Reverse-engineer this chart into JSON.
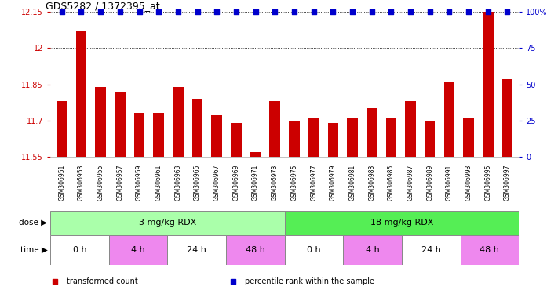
{
  "title": "GDS5282 / 1372395_at",
  "bar_values": [
    11.78,
    12.07,
    11.84,
    11.82,
    11.73,
    11.73,
    11.84,
    11.79,
    11.72,
    11.69,
    11.57,
    11.78,
    11.7,
    11.71,
    11.69,
    11.71,
    11.75,
    11.71,
    11.78,
    11.7,
    11.86,
    11.71,
    12.15,
    11.87
  ],
  "percentile_values": [
    100,
    100,
    100,
    100,
    100,
    100,
    100,
    100,
    100,
    100,
    100,
    100,
    100,
    100,
    100,
    100,
    100,
    100,
    100,
    100,
    100,
    100,
    100,
    100
  ],
  "xlabels": [
    "GSM306951",
    "GSM306953",
    "GSM306955",
    "GSM306957",
    "GSM306959",
    "GSM306961",
    "GSM306963",
    "GSM306965",
    "GSM306967",
    "GSM306969",
    "GSM306971",
    "GSM306973",
    "GSM306975",
    "GSM306977",
    "GSM306979",
    "GSM306981",
    "GSM306983",
    "GSM306985",
    "GSM306987",
    "GSM306989",
    "GSM306991",
    "GSM306993",
    "GSM306995",
    "GSM306997"
  ],
  "bar_color": "#cc0000",
  "percentile_color": "#0000cc",
  "ylim_left": [
    11.55,
    12.15
  ],
  "ylim_right": [
    0,
    100
  ],
  "yticks_left": [
    11.55,
    11.7,
    11.85,
    12.0,
    12.15
  ],
  "ytick_labels_left": [
    "11.55",
    "11.7",
    "11.85",
    "12",
    "12.15"
  ],
  "yticks_right": [
    0,
    25,
    50,
    75,
    100
  ],
  "ytick_labels_right": [
    "0",
    "25",
    "50",
    "75",
    "100%"
  ],
  "dose_groups": [
    {
      "label": "3 mg/kg RDX",
      "start": 0,
      "end": 12,
      "color": "#aaffaa"
    },
    {
      "label": "18 mg/kg RDX",
      "start": 12,
      "end": 24,
      "color": "#55ee55"
    }
  ],
  "time_groups": [
    {
      "label": "0 h",
      "start": 0,
      "end": 3,
      "color": "#ffffff"
    },
    {
      "label": "4 h",
      "start": 3,
      "end": 6,
      "color": "#ee88ee"
    },
    {
      "label": "24 h",
      "start": 6,
      "end": 9,
      "color": "#ffffff"
    },
    {
      "label": "48 h",
      "start": 9,
      "end": 12,
      "color": "#ee88ee"
    },
    {
      "label": "0 h",
      "start": 12,
      "end": 15,
      "color": "#ffffff"
    },
    {
      "label": "4 h",
      "start": 15,
      "end": 18,
      "color": "#ee88ee"
    },
    {
      "label": "24 h",
      "start": 18,
      "end": 21,
      "color": "#ffffff"
    },
    {
      "label": "48 h",
      "start": 21,
      "end": 24,
      "color": "#ee88ee"
    }
  ],
  "legend_items": [
    {
      "label": "transformed count",
      "color": "#cc0000"
    },
    {
      "label": "percentile rank within the sample",
      "color": "#0000cc"
    }
  ],
  "bg_color": "#dddddd"
}
